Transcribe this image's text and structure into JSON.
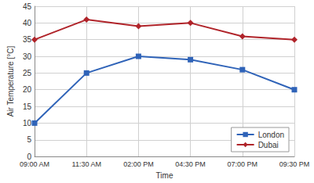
{
  "chart_data": {
    "type": "line",
    "xlabel": "Time",
    "ylabel": "Air Temperature [°C]",
    "categories": [
      "09:00 AM",
      "11:30 AM",
      "02:00 PM",
      "04:30 PM",
      "07:00 PM",
      "09:30 PM"
    ],
    "series": [
      {
        "name": "London",
        "color": "#2f63b8",
        "marker": "square",
        "values": [
          10,
          25,
          30,
          29,
          26,
          20
        ]
      },
      {
        "name": "Dubai",
        "color": "#b0242a",
        "marker": "diamond",
        "values": [
          35,
          41,
          39,
          40,
          36,
          35
        ]
      }
    ],
    "ylim": [
      0,
      45
    ],
    "yticks": [
      0,
      5,
      10,
      15,
      20,
      25,
      30,
      35,
      40,
      45
    ],
    "grid": true,
    "legend": "lower right"
  }
}
